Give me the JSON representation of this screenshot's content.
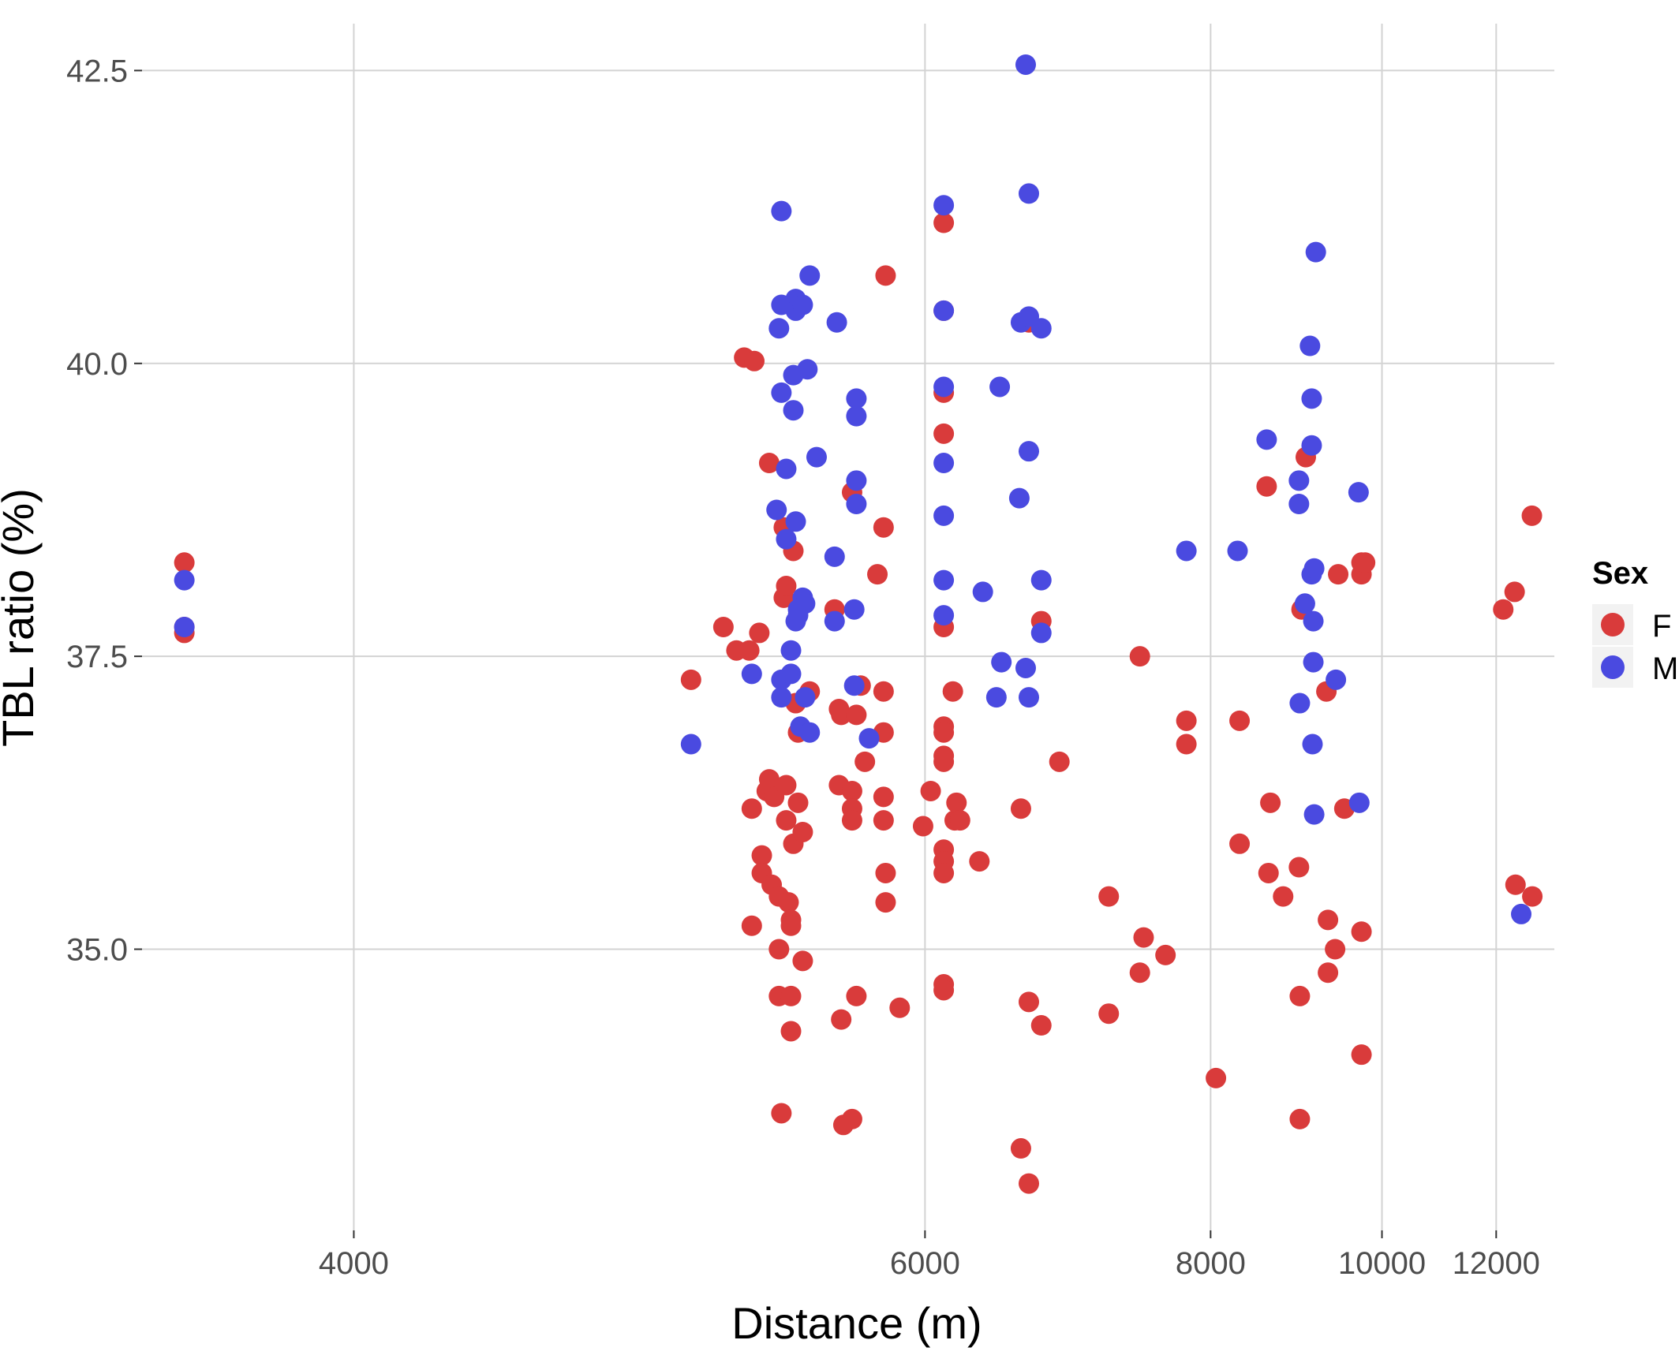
{
  "chart_data": {
    "type": "scatter",
    "title": "",
    "xlabel": "Distance (m)",
    "ylabel": "TBL ratio (%)",
    "x_scale": "reciprocal",
    "xlim": [
      3560,
      13360
    ],
    "ylim": [
      32.6,
      42.9
    ],
    "x_ticks": [
      4000,
      6000,
      8000,
      10000,
      12000
    ],
    "x_tick_labels": [
      "4000",
      "6000",
      "8000",
      "10000",
      "12000"
    ],
    "y_ticks": [
      35.0,
      37.5,
      40.0,
      42.5
    ],
    "y_tick_labels": [
      "35.0",
      "37.5",
      "40.0",
      "42.5"
    ],
    "grid": true,
    "legend": {
      "title": "Sex",
      "position": "right",
      "entries": [
        {
          "label": "F",
          "color": "#d93b3b"
        },
        {
          "label": "M",
          "color": "#4a4ae0"
        }
      ]
    },
    "series": [
      {
        "name": "F",
        "color": "#d93b3b",
        "points": [
          [
            3640,
            38.3
          ],
          [
            3640,
            37.75
          ],
          [
            3640,
            37.7
          ],
          [
            4980,
            37.3
          ],
          [
            5100,
            37.75
          ],
          [
            5150,
            37.55
          ],
          [
            5180,
            40.05
          ],
          [
            5200,
            37.55
          ],
          [
            5210,
            36.2
          ],
          [
            5210,
            35.2
          ],
          [
            5220,
            40.02
          ],
          [
            5240,
            37.7
          ],
          [
            5250,
            35.8
          ],
          [
            5250,
            35.65
          ],
          [
            5270,
            36.35
          ],
          [
            5280,
            36.45
          ],
          [
            5280,
            39.15
          ],
          [
            5290,
            35.55
          ],
          [
            5300,
            36.3
          ],
          [
            5320,
            35.45
          ],
          [
            5320,
            35.0
          ],
          [
            5320,
            34.6
          ],
          [
            5330,
            33.6
          ],
          [
            5340,
            38.6
          ],
          [
            5340,
            38.0
          ],
          [
            5350,
            38.1
          ],
          [
            5350,
            36.4
          ],
          [
            5350,
            36.1
          ],
          [
            5360,
            35.4
          ],
          [
            5370,
            35.25
          ],
          [
            5370,
            35.2
          ],
          [
            5370,
            34.6
          ],
          [
            5370,
            34.3
          ],
          [
            5380,
            38.4
          ],
          [
            5380,
            35.9
          ],
          [
            5390,
            37.1
          ],
          [
            5400,
            36.85
          ],
          [
            5400,
            36.25
          ],
          [
            5420,
            36.0
          ],
          [
            5420,
            34.9
          ],
          [
            5450,
            37.2
          ],
          [
            5560,
            37.9
          ],
          [
            5580,
            37.05
          ],
          [
            5580,
            36.4
          ],
          [
            5590,
            37.0
          ],
          [
            5590,
            34.4
          ],
          [
            5600,
            33.5
          ],
          [
            5640,
            38.9
          ],
          [
            5640,
            36.35
          ],
          [
            5640,
            36.2
          ],
          [
            5640,
            36.1
          ],
          [
            5640,
            33.55
          ],
          [
            5660,
            37.0
          ],
          [
            5660,
            34.6
          ],
          [
            5680,
            37.25
          ],
          [
            5700,
            36.6
          ],
          [
            5760,
            38.2
          ],
          [
            5790,
            38.6
          ],
          [
            5790,
            37.2
          ],
          [
            5790,
            36.85
          ],
          [
            5790,
            36.3
          ],
          [
            5790,
            36.1
          ],
          [
            5800,
            40.75
          ],
          [
            5800,
            35.65
          ],
          [
            5800,
            35.4
          ],
          [
            5870,
            34.5
          ],
          [
            5990,
            36.05
          ],
          [
            6030,
            36.35
          ],
          [
            6100,
            41.2
          ],
          [
            6100,
            40.45
          ],
          [
            6100,
            39.75
          ],
          [
            6100,
            39.4
          ],
          [
            6100,
            37.75
          ],
          [
            6100,
            36.9
          ],
          [
            6100,
            36.85
          ],
          [
            6100,
            36.65
          ],
          [
            6100,
            36.6
          ],
          [
            6100,
            35.85
          ],
          [
            6100,
            35.75
          ],
          [
            6100,
            35.65
          ],
          [
            6100,
            34.7
          ],
          [
            6100,
            34.65
          ],
          [
            6150,
            37.2
          ],
          [
            6160,
            36.1
          ],
          [
            6170,
            36.25
          ],
          [
            6190,
            36.1
          ],
          [
            6300,
            35.75
          ],
          [
            6550,
            36.2
          ],
          [
            6550,
            33.3
          ],
          [
            6600,
            40.35
          ],
          [
            6600,
            34.55
          ],
          [
            6600,
            33.0
          ],
          [
            6680,
            37.8
          ],
          [
            6680,
            34.35
          ],
          [
            6800,
            36.6
          ],
          [
            7150,
            35.45
          ],
          [
            7150,
            34.45
          ],
          [
            7390,
            37.5
          ],
          [
            7390,
            34.8
          ],
          [
            7420,
            35.1
          ],
          [
            7600,
            34.95
          ],
          [
            7780,
            36.95
          ],
          [
            7780,
            36.75
          ],
          [
            8050,
            33.9
          ],
          [
            8280,
            36.95
          ],
          [
            8280,
            35.9
          ],
          [
            8560,
            38.95
          ],
          [
            8580,
            35.65
          ],
          [
            8600,
            36.25
          ],
          [
            8740,
            35.45
          ],
          [
            8920,
            35.7
          ],
          [
            8930,
            34.6
          ],
          [
            8930,
            33.55
          ],
          [
            8950,
            37.9
          ],
          [
            9000,
            39.2
          ],
          [
            9250,
            37.2
          ],
          [
            9270,
            35.25
          ],
          [
            9270,
            34.8
          ],
          [
            9360,
            35.0
          ],
          [
            9400,
            38.2
          ],
          [
            9480,
            36.2
          ],
          [
            9710,
            38.3
          ],
          [
            9710,
            38.2
          ],
          [
            9710,
            35.15
          ],
          [
            9710,
            34.1
          ],
          [
            9760,
            38.3
          ],
          [
            12150,
            37.9
          ],
          [
            12400,
            38.05
          ],
          [
            12420,
            35.55
          ],
          [
            12800,
            38.7
          ],
          [
            12810,
            35.45
          ]
        ]
      },
      {
        "name": "M",
        "color": "#4a4ae0",
        "points": [
          [
            3640,
            38.15
          ],
          [
            3640,
            37.75
          ],
          [
            4980,
            36.75
          ],
          [
            5210,
            37.35
          ],
          [
            5310,
            38.75
          ],
          [
            5320,
            40.3
          ],
          [
            5330,
            41.3
          ],
          [
            5330,
            40.5
          ],
          [
            5330,
            39.75
          ],
          [
            5330,
            37.3
          ],
          [
            5330,
            37.15
          ],
          [
            5350,
            39.1
          ],
          [
            5350,
            38.5
          ],
          [
            5370,
            37.55
          ],
          [
            5370,
            37.35
          ],
          [
            5380,
            39.9
          ],
          [
            5380,
            39.6
          ],
          [
            5390,
            40.55
          ],
          [
            5390,
            40.45
          ],
          [
            5390,
            38.65
          ],
          [
            5390,
            37.8
          ],
          [
            5400,
            37.9
          ],
          [
            5400,
            37.85
          ],
          [
            5410,
            36.9
          ],
          [
            5420,
            40.5
          ],
          [
            5420,
            38.0
          ],
          [
            5430,
            37.95
          ],
          [
            5430,
            37.15
          ],
          [
            5440,
            39.95
          ],
          [
            5450,
            40.75
          ],
          [
            5450,
            36.85
          ],
          [
            5480,
            39.2
          ],
          [
            5560,
            38.35
          ],
          [
            5560,
            37.8
          ],
          [
            5570,
            40.35
          ],
          [
            5650,
            37.25
          ],
          [
            5650,
            37.9
          ],
          [
            5660,
            39.7
          ],
          [
            5660,
            39.55
          ],
          [
            5660,
            39.0
          ],
          [
            5660,
            38.8
          ],
          [
            5720,
            36.8
          ],
          [
            6100,
            41.35
          ],
          [
            6100,
            40.45
          ],
          [
            6100,
            39.8
          ],
          [
            6100,
            39.15
          ],
          [
            6100,
            38.7
          ],
          [
            6100,
            38.15
          ],
          [
            6100,
            37.85
          ],
          [
            6320,
            38.05
          ],
          [
            6400,
            37.15
          ],
          [
            6420,
            39.8
          ],
          [
            6430,
            37.45
          ],
          [
            6540,
            38.85
          ],
          [
            6550,
            40.35
          ],
          [
            6580,
            42.55
          ],
          [
            6580,
            37.4
          ],
          [
            6600,
            41.45
          ],
          [
            6600,
            40.4
          ],
          [
            6600,
            39.25
          ],
          [
            6600,
            37.15
          ],
          [
            6680,
            40.3
          ],
          [
            6680,
            38.15
          ],
          [
            6680,
            37.7
          ],
          [
            7780,
            38.4
          ],
          [
            8260,
            38.4
          ],
          [
            8560,
            39.35
          ],
          [
            8920,
            38.8
          ],
          [
            8920,
            39.0
          ],
          [
            8930,
            37.1
          ],
          [
            8990,
            37.95
          ],
          [
            9050,
            40.15
          ],
          [
            9070,
            39.7
          ],
          [
            9070,
            39.3
          ],
          [
            9070,
            38.2
          ],
          [
            9080,
            36.75
          ],
          [
            9090,
            37.8
          ],
          [
            9090,
            37.45
          ],
          [
            9100,
            36.15
          ],
          [
            9100,
            38.25
          ],
          [
            9120,
            40.95
          ],
          [
            9370,
            37.3
          ],
          [
            9670,
            38.9
          ],
          [
            9680,
            36.25
          ],
          [
            12550,
            35.3
          ]
        ]
      }
    ]
  }
}
